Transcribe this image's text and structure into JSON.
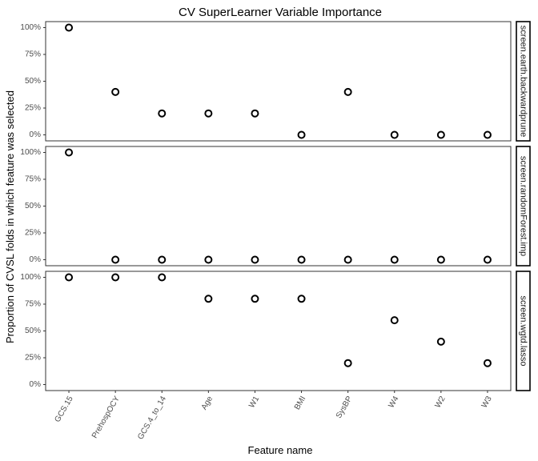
{
  "chart_data": {
    "type": "scatter",
    "title": "CV SuperLearner Variable Importance",
    "xlabel": "Feature name",
    "ylabel": "Proportion of CVSL folds in which feature was selected",
    "categories": [
      "GCS.15",
      "PrehospOCY",
      "GCS.4_to_14",
      "Age",
      "W1",
      "BMI",
      "SysBP",
      "W4",
      "W2",
      "W3"
    ],
    "y_ticks": [
      "0%",
      "25%",
      "50%",
      "75%",
      "100%"
    ],
    "ylim": [
      0,
      1
    ],
    "grid": false,
    "panels": [
      {
        "name": "screen.earth.backwardprune",
        "values": [
          1.0,
          0.4,
          0.2,
          0.2,
          0.2,
          0.0,
          0.4,
          0.0,
          0.0,
          0.0
        ]
      },
      {
        "name": "screen.randomForest.imp",
        "values": [
          1.0,
          0.0,
          0.0,
          0.0,
          0.0,
          0.0,
          0.0,
          0.0,
          0.0,
          0.0
        ]
      },
      {
        "name": "screen.wgtd.lasso",
        "values": [
          1.0,
          1.0,
          1.0,
          0.8,
          0.8,
          0.8,
          0.2,
          0.6,
          0.4,
          0.2
        ]
      }
    ]
  }
}
